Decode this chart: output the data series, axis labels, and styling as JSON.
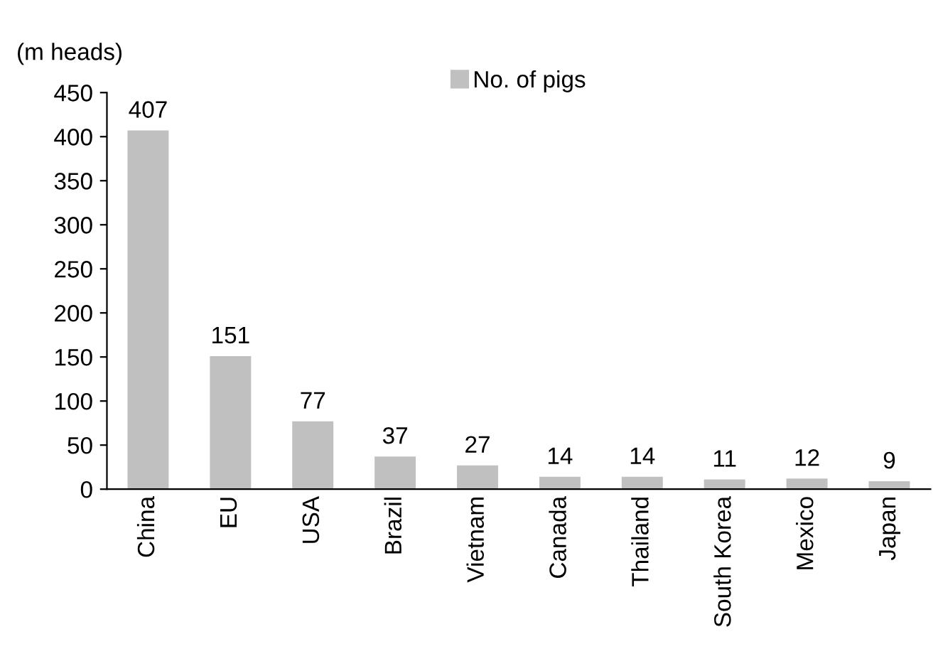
{
  "chart_data": {
    "type": "bar",
    "ylabel": "(m heads)",
    "categories": [
      "China",
      "EU",
      "USA",
      "Brazil",
      "Vietnam",
      "Canada",
      "Thailand",
      "South Korea",
      "Mexico",
      "Japan"
    ],
    "series": [
      {
        "name": "No. of pigs",
        "color": "#c0c0c0",
        "values": [
          407,
          151,
          77,
          37,
          27,
          14,
          14,
          11,
          12,
          9
        ]
      }
    ],
    "ylim": [
      0,
      450
    ],
    "yticks": [
      0,
      50,
      100,
      150,
      200,
      250,
      300,
      350,
      400,
      450
    ],
    "data_labels": true,
    "grid": false,
    "legend": "top"
  }
}
